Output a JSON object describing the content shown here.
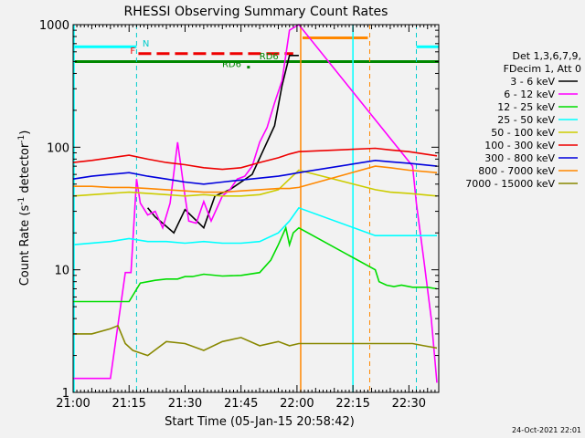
{
  "chart_data": {
    "type": "line",
    "title": "RHESSI Observing Summary Count Rates",
    "xlabel": "Start Time (05-Jan-15 20:58:42)",
    "ylabel_main": "Count Rate (s",
    "ylabel_sup1": "-1",
    "ylabel_mid": " detector",
    "ylabel_sup2": "-1",
    "ylabel_end": ")",
    "yscale": "log",
    "ylim": [
      1,
      1000
    ],
    "xlim_minutes": [
      0,
      98
    ],
    "x_ticks": [
      {
        "t": 0,
        "label": "21:00"
      },
      {
        "t": 15,
        "label": "21:15"
      },
      {
        "t": 30,
        "label": "21:30"
      },
      {
        "t": 45,
        "label": "21:45"
      },
      {
        "t": 60,
        "label": "22:00"
      },
      {
        "t": 75,
        "label": "22:15"
      },
      {
        "t": 90,
        "label": "22:30"
      }
    ],
    "y_ticks": [
      {
        "v": 1,
        "label": "1"
      },
      {
        "v": 10,
        "label": "10"
      },
      {
        "v": 100,
        "label": "100"
      },
      {
        "v": 1000,
        "label": "1000"
      }
    ],
    "legend": {
      "placement": "right",
      "header": [
        "Det 1,3,6,7,9,",
        "FDecim 1, Att 0"
      ]
    },
    "series": [
      {
        "name": "3 - 6 keV",
        "color": "#000000",
        "x": [
          20,
          22,
          24,
          27,
          30,
          32,
          35,
          38,
          42,
          45,
          48,
          51,
          54,
          56,
          58,
          60.5
        ],
        "y": [
          32,
          27,
          24,
          20,
          31,
          27,
          22,
          40,
          45,
          52,
          60,
          95,
          150,
          320,
          560,
          560
        ]
      },
      {
        "name": "6 - 12 keV",
        "color": "#ff00ff",
        "x": [
          0,
          5,
          10,
          14,
          15.5,
          17,
          18,
          20,
          22,
          24,
          26,
          28,
          30,
          31,
          33,
          35,
          37,
          40,
          42,
          44,
          46,
          48,
          50,
          52,
          54,
          56,
          58,
          60.5,
          91,
          92,
          94,
          96,
          97.5
        ],
        "y": [
          1.3,
          1.3,
          1.3,
          9.5,
          9.5,
          55,
          35,
          28,
          30,
          22,
          35,
          110,
          40,
          25,
          24,
          36,
          25,
          40,
          45,
          55,
          58,
          70,
          110,
          145,
          230,
          350,
          900,
          1000,
          70,
          35,
          12,
          4,
          1.2
        ]
      },
      {
        "name": "12 - 25 keV",
        "color": "#00dd00",
        "x": [
          0,
          14,
          15,
          18,
          22,
          25,
          28,
          30,
          32,
          35,
          40,
          45,
          50,
          53,
          55,
          57,
          58,
          59,
          60.5,
          81,
          82,
          84,
          86,
          88,
          91,
          95,
          97.5
        ],
        "y": [
          5.5,
          5.5,
          5.5,
          7.8,
          8.2,
          8.4,
          8.4,
          8.8,
          8.8,
          9.2,
          8.9,
          9,
          9.5,
          12,
          16,
          22,
          16,
          20,
          22,
          10,
          8,
          7.5,
          7.3,
          7.5,
          7.2,
          7.2,
          7
        ]
      },
      {
        "name": "25 - 50 keV",
        "color": "#00ffff",
        "x": [
          0,
          10,
          15,
          20,
          25,
          30,
          35,
          40,
          45,
          50,
          55,
          58,
          60.5,
          81,
          85,
          90,
          97.5
        ],
        "y": [
          16,
          17,
          18,
          17,
          17,
          16.5,
          17,
          16.5,
          16.5,
          17,
          20,
          25,
          32,
          19,
          19,
          19,
          19
        ]
      },
      {
        "name": "50 - 100 keV",
        "color": "#cccc00",
        "x": [
          0,
          10,
          15,
          20,
          25,
          30,
          35,
          40,
          45,
          50,
          55,
          58,
          60.5,
          81,
          85,
          90,
          97.5
        ],
        "y": [
          40,
          42,
          43,
          42,
          41,
          40,
          41,
          40,
          40,
          41,
          45,
          55,
          65,
          45,
          43,
          42,
          40
        ]
      },
      {
        "name": "100 - 300 keV",
        "color": "#ee0000",
        "x": [
          0,
          5,
          10,
          15,
          20,
          25,
          30,
          35,
          40,
          45,
          50,
          55,
          58,
          60.5,
          81,
          85,
          90,
          97.5
        ],
        "y": [
          75,
          78,
          82,
          86,
          80,
          75,
          72,
          68,
          66,
          68,
          75,
          82,
          88,
          92,
          98,
          95,
          92,
          85
        ]
      },
      {
        "name": "300 - 800 keV",
        "color": "#0000dd",
        "x": [
          0,
          5,
          10,
          15,
          20,
          25,
          30,
          35,
          40,
          45,
          50,
          55,
          58,
          60.5,
          81,
          85,
          90,
          97.5
        ],
        "y": [
          55,
          58,
          60,
          62,
          58,
          55,
          52,
          50,
          52,
          54,
          56,
          58,
          60,
          62,
          78,
          76,
          74,
          70
        ]
      },
      {
        "name": "800 - 7000 keV",
        "color": "#ff8800",
        "x": [
          0,
          5,
          10,
          15,
          20,
          25,
          30,
          35,
          40,
          45,
          50,
          55,
          58,
          60.5,
          81,
          85,
          90,
          97.5
        ],
        "y": [
          48,
          48,
          47,
          47,
          46,
          45,
          44,
          43,
          43,
          44,
          45,
          46,
          46,
          47,
          70,
          68,
          65,
          62
        ]
      },
      {
        "name": "7000 - 15000 keV",
        "color": "#888800",
        "x": [
          0,
          5,
          10,
          12,
          14,
          16,
          20,
          25,
          30,
          35,
          40,
          45,
          50,
          55,
          58,
          60.5,
          91,
          94,
          97.5
        ],
        "y": [
          3,
          3,
          3.3,
          3.5,
          2.5,
          2.2,
          2,
          2.6,
          2.5,
          2.2,
          2.6,
          2.8,
          2.4,
          2.6,
          2.4,
          2.5,
          2.5,
          2.4,
          2.3
        ]
      }
    ],
    "annotations": [
      {
        "text": "N",
        "color": "#00cccc",
        "t": 19.5,
        "v": 660
      },
      {
        "text": "F",
        "color": "#ee0000",
        "t": 16,
        "v": 580
      },
      {
        "text": "RD6",
        "color": "#008800",
        "t": 42.5,
        "v": 450
      },
      {
        "text": "RD6",
        "color": "#008800",
        "t": 52.5,
        "v": 520
      }
    ]
  },
  "footer_date": "24-Oct-2021 22:01"
}
